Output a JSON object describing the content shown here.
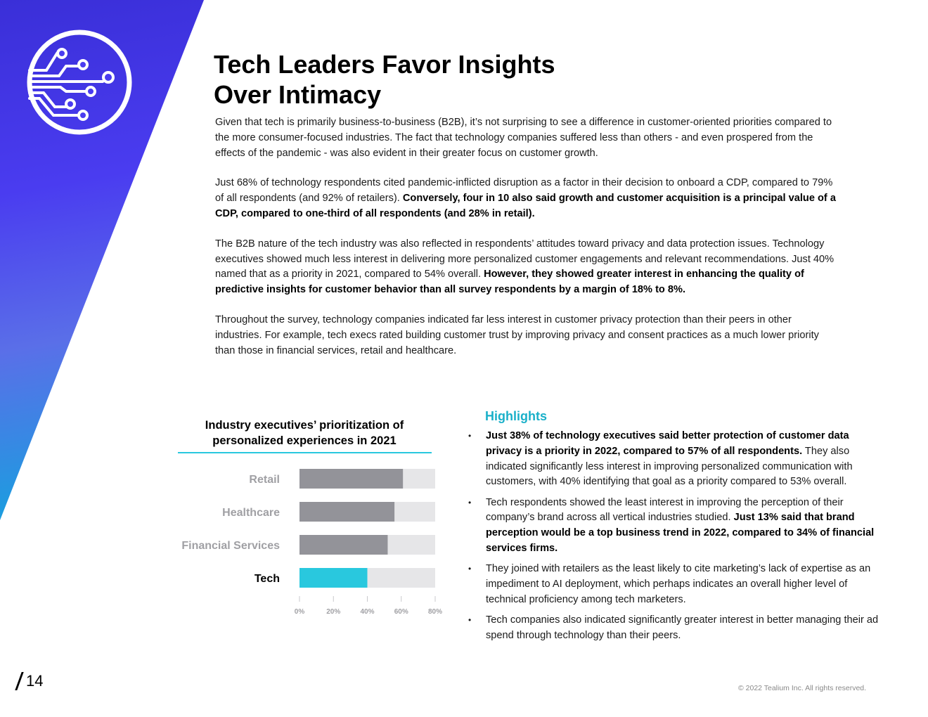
{
  "colors": {
    "accent": "#29c8de",
    "bar_gray": "#939399",
    "track_gray": "#e6e6e8",
    "highlight_blue": "#1ab0c9"
  },
  "logo": {
    "icon": "circuit-icon"
  },
  "title": {
    "line1": "Tech Leaders Favor Insights",
    "line2": "Over Intimacy"
  },
  "body": {
    "p1": "Given that tech is primarily business-to-business (B2B), it’s not surprising to see a difference in customer-oriented priorities compared to the more consumer-focused industries. The fact that technology companies suffered less than others - and even prospered from the effects of the pandemic - was also evident in their greater focus on customer growth.",
    "p2_a": "Just 68% of technology respondents cited pandemic-inflicted disruption as a factor in their decision to onboard a CDP, compared to 79% of all respondents (and 92% of retailers). ",
    "p2_b": "Conversely, four in 10 also said growth and customer acquisition is a principal value of a CDP, compared to one-third of all respondents (and 28% in retail).",
    "p3_a": "The B2B nature of the tech industry was also reflected in respondents’ attitudes toward privacy and data protection issues. Technology executives showed much less interest in delivering more personalized customer engagements and relevant recommendations. Just 40% named that as a priority in 2021, compared to 54% overall. ",
    "p3_b": "However, they showed greater interest in enhancing the quality of predictive insights for customer behavior than all survey respondents by a margin of 18% to 8%.",
    "p4": "Throughout the survey, technology companies indicated far less interest in customer privacy protection than their peers in other industries. For example, tech execs rated building customer trust by improving privacy and consent practices as a much lower priority than those in financial services, retail and healthcare."
  },
  "chart_data": {
    "type": "bar",
    "orientation": "horizontal",
    "title": "Industry executives’ prioritization of personalized experiences in 2021",
    "categories": [
      "Retail",
      "Healthcare",
      "Financial Services",
      "Tech"
    ],
    "values": [
      61,
      56,
      52,
      40
    ],
    "highlight": "Tech",
    "xlim": [
      0,
      80
    ],
    "ticks": [
      0,
      20,
      40,
      60,
      80
    ],
    "tick_labels": [
      "0%",
      "20%",
      "40%",
      "60%",
      "80%"
    ]
  },
  "highlights": {
    "title": "Highlights",
    "items": [
      {
        "bold": "Just 38% of technology executives said better protection of customer data privacy is a priority in 2022, compared to 57% of all respondents.",
        "text": " They also indicated significantly less interest in improving personalized communication with customers, with 40% identifying that goal as a priority compared to 53% overall."
      },
      {
        "text": "Tech respondents showed the least interest in improving the perception of their company’s brand across all vertical industries studied. ",
        "bold": "Just 13% said that brand perception would be a top business trend in 2022, compared to 34% of financial services firms."
      },
      {
        "text": "They joined with retailers as the least likely to cite marketing’s lack of expertise as an impediment to AI deployment, which perhaps indicates an overall higher level of technical proficiency among tech marketers."
      },
      {
        "text": "Tech companies also indicated significantly greater interest in better managing their ad spend through technology than their peers."
      }
    ]
  },
  "footer": {
    "page": "14",
    "copyright": "© 2022 Tealium Inc. All rights reserved."
  }
}
